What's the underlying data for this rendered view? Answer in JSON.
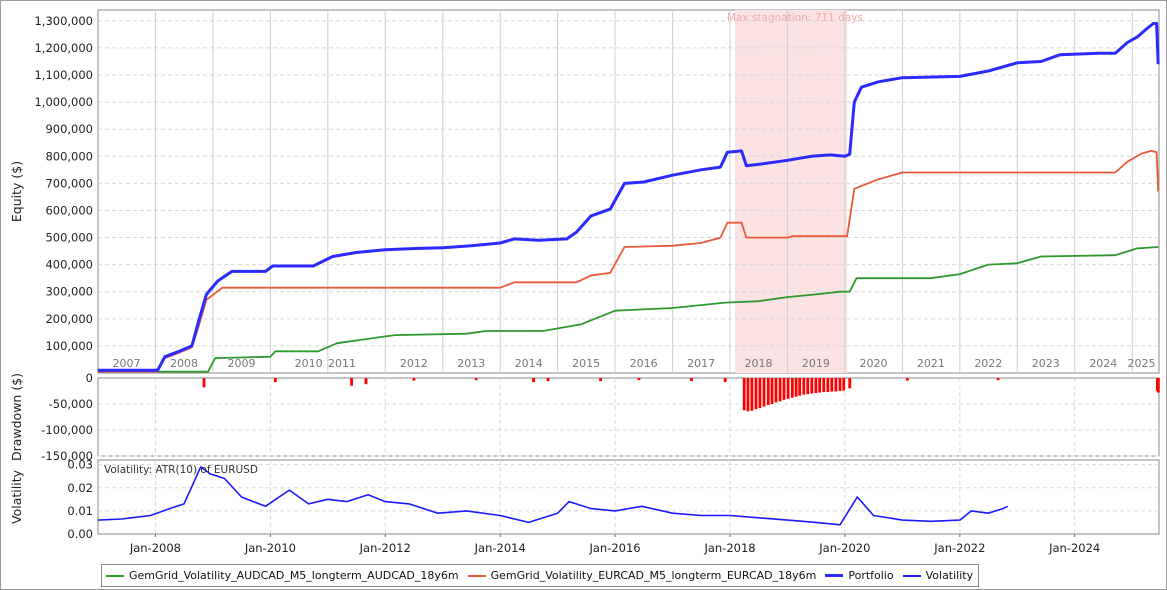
{
  "chart_data": [
    {
      "type": "line",
      "ylabel": "Equity ($)",
      "ylim": [
        0,
        1340000
      ],
      "xlim": [
        "2007-01-01",
        "2025-06-20"
      ],
      "yticks": [
        100000,
        200000,
        300000,
        400000,
        500000,
        600000,
        700000,
        800000,
        900000,
        1000000,
        1100000,
        1200000,
        1300000
      ],
      "ytick_labels": [
        "100,000",
        "200,000",
        "300,000",
        "400,000",
        "500,000",
        "600,000",
        "700,000",
        "800,000",
        "900,000",
        "1,000,000",
        "1,100,000",
        "1,200,000",
        "1,300,000"
      ],
      "year_labels": [
        {
          "label": "2007",
          "x": "2007-07-01"
        },
        {
          "label": "2008",
          "x": "2008-07-01"
        },
        {
          "label": "2009",
          "x": "2009-07-01"
        },
        {
          "label": "2010",
          "x": "2010-09-01"
        },
        {
          "label": "2011",
          "x": "2011-04-01"
        },
        {
          "label": "2012",
          "x": "2012-07-01"
        },
        {
          "label": "2013",
          "x": "2013-07-01"
        },
        {
          "label": "2014",
          "x": "2014-07-01"
        },
        {
          "label": "2015",
          "x": "2015-07-01"
        },
        {
          "label": "2016",
          "x": "2016-07-01"
        },
        {
          "label": "2017",
          "x": "2017-07-01"
        },
        {
          "label": "2018",
          "x": "2018-07-01"
        },
        {
          "label": "2019",
          "x": "2019-07-01"
        },
        {
          "label": "2020",
          "x": "2020-07-01"
        },
        {
          "label": "2021",
          "x": "2021-07-01"
        },
        {
          "label": "2022",
          "x": "2022-07-01"
        },
        {
          "label": "2023",
          "x": "2023-07-01"
        },
        {
          "label": "2024",
          "x": "2024-07-01"
        },
        {
          "label": "2025",
          "x": "2025-03-01"
        }
      ],
      "stagnation": {
        "from": "2018-02-01",
        "to": "2020-01-15",
        "label": "Max stagnation: 711 days"
      },
      "series": [
        {
          "name": "Portfolio",
          "color": "#2b2bff",
          "points": [
            [
              "2007-01-01",
              10000
            ],
            [
              "2008-01-15",
              10000
            ],
            [
              "2008-03-01",
              60000
            ],
            [
              "2008-06-01",
              80000
            ],
            [
              "2008-08-20",
              100000
            ],
            [
              "2008-10-01",
              190000
            ],
            [
              "2008-11-20",
              290000
            ],
            [
              "2009-02-01",
              340000
            ],
            [
              "2009-05-01",
              375000
            ],
            [
              "2009-12-01",
              375000
            ],
            [
              "2010-01-15",
              395000
            ],
            [
              "2010-10-01",
              395000
            ],
            [
              "2011-02-01",
              430000
            ],
            [
              "2011-07-01",
              445000
            ],
            [
              "2012-01-01",
              455000
            ],
            [
              "2012-08-01",
              460000
            ],
            [
              "2013-01-01",
              462000
            ],
            [
              "2013-07-01",
              470000
            ],
            [
              "2014-01-01",
              480000
            ],
            [
              "2014-04-01",
              495000
            ],
            [
              "2014-09-01",
              490000
            ],
            [
              "2015-03-01",
              495000
            ],
            [
              "2015-05-01",
              520000
            ],
            [
              "2015-08-01",
              580000
            ],
            [
              "2015-12-01",
              605000
            ],
            [
              "2016-03-01",
              700000
            ],
            [
              "2016-07-01",
              705000
            ],
            [
              "2017-01-01",
              730000
            ],
            [
              "2017-07-01",
              750000
            ],
            [
              "2017-11-01",
              760000
            ],
            [
              "2017-12-15",
              815000
            ],
            [
              "2018-03-15",
              820000
            ],
            [
              "2018-04-15",
              765000
            ],
            [
              "2018-07-01",
              770000
            ],
            [
              "2019-01-01",
              785000
            ],
            [
              "2019-06-01",
              800000
            ],
            [
              "2019-10-01",
              805000
            ],
            [
              "2020-01-01",
              800000
            ],
            [
              "2020-02-01",
              808000
            ],
            [
              "2020-03-01",
              1000000
            ],
            [
              "2020-04-15",
              1055000
            ],
            [
              "2020-08-01",
              1075000
            ],
            [
              "2021-01-01",
              1090000
            ],
            [
              "2022-01-01",
              1095000
            ],
            [
              "2022-07-01",
              1115000
            ],
            [
              "2023-01-01",
              1145000
            ],
            [
              "2023-06-01",
              1150000
            ],
            [
              "2023-10-01",
              1175000
            ],
            [
              "2024-06-01",
              1180000
            ],
            [
              "2024-09-15",
              1180000
            ],
            [
              "2024-12-01",
              1220000
            ],
            [
              "2025-02-01",
              1240000
            ],
            [
              "2025-04-01",
              1270000
            ],
            [
              "2025-05-15",
              1290000
            ],
            [
              "2025-06-05",
              1290000
            ],
            [
              "2025-06-15",
              1140000
            ]
          ]
        },
        {
          "name": "GemGrid_Volatility_EURCAD_M5_longterm_EURCAD_18y6m",
          "color": "#e85a3a",
          "points": [
            [
              "2007-01-01",
              5000
            ],
            [
              "2008-01-15",
              5000
            ],
            [
              "2008-03-01",
              55000
            ],
            [
              "2008-06-01",
              75000
            ],
            [
              "2008-08-20",
              95000
            ],
            [
              "2008-10-01",
              170000
            ],
            [
              "2008-11-20",
              270000
            ],
            [
              "2009-03-01",
              315000
            ],
            [
              "2014-01-01",
              315000
            ],
            [
              "2014-04-01",
              335000
            ],
            [
              "2015-05-01",
              335000
            ],
            [
              "2015-08-01",
              360000
            ],
            [
              "2015-12-01",
              370000
            ],
            [
              "2016-03-01",
              465000
            ],
            [
              "2017-01-01",
              470000
            ],
            [
              "2017-07-01",
              480000
            ],
            [
              "2017-11-01",
              500000
            ],
            [
              "2017-12-15",
              555000
            ],
            [
              "2018-03-15",
              555000
            ],
            [
              "2018-04-15",
              500000
            ],
            [
              "2019-01-01",
              500000
            ],
            [
              "2019-02-01",
              505000
            ],
            [
              "2020-01-15",
              505000
            ],
            [
              "2020-03-01",
              680000
            ],
            [
              "2020-08-01",
              715000
            ],
            [
              "2021-01-01",
              740000
            ],
            [
              "2022-01-01",
              740000
            ],
            [
              "2024-09-15",
              740000
            ],
            [
              "2024-12-01",
              780000
            ],
            [
              "2025-03-01",
              810000
            ],
            [
              "2025-05-01",
              820000
            ],
            [
              "2025-06-05",
              815000
            ],
            [
              "2025-06-15",
              670000
            ]
          ]
        },
        {
          "name": "GemGrid_Volatility_AUDCAD_M5_longterm_AUDCAD_18y6m",
          "color": "#2e9a2e",
          "points": [
            [
              "2007-01-01",
              5000
            ],
            [
              "2008-12-01",
              5000
            ],
            [
              "2009-01-15",
              55000
            ],
            [
              "2010-01-01",
              60000
            ],
            [
              "2010-02-01",
              80000
            ],
            [
              "2010-11-01",
              80000
            ],
            [
              "2011-03-01",
              110000
            ],
            [
              "2011-09-01",
              125000
            ],
            [
              "2012-03-01",
              140000
            ],
            [
              "2013-06-01",
              145000
            ],
            [
              "2013-10-01",
              155000
            ],
            [
              "2014-10-01",
              155000
            ],
            [
              "2015-06-01",
              180000
            ],
            [
              "2016-01-01",
              230000
            ],
            [
              "2017-01-01",
              240000
            ],
            [
              "2017-12-01",
              260000
            ],
            [
              "2018-07-01",
              265000
            ],
            [
              "2019-01-01",
              280000
            ],
            [
              "2019-07-01",
              290000
            ],
            [
              "2019-12-01",
              300000
            ],
            [
              "2020-02-01",
              300000
            ],
            [
              "2020-03-15",
              350000
            ],
            [
              "2021-07-01",
              350000
            ],
            [
              "2022-01-01",
              365000
            ],
            [
              "2022-07-01",
              400000
            ],
            [
              "2023-01-01",
              405000
            ],
            [
              "2023-06-01",
              430000
            ],
            [
              "2024-09-15",
              435000
            ],
            [
              "2025-02-01",
              460000
            ],
            [
              "2025-06-15",
              465000
            ]
          ]
        }
      ]
    },
    {
      "type": "bar",
      "ylabel": "Drawdown ($)",
      "ylim": [
        -150000,
        0
      ],
      "yticks": [
        0,
        -50000,
        -100000,
        -150000
      ],
      "ytick_labels": [
        "0",
        "-50,000",
        "-100,000",
        "-150,000"
      ],
      "color": "#ff0000",
      "bars": [
        [
          "2008-11-05",
          -18000
        ],
        [
          "2010-02-01",
          -8000
        ],
        [
          "2011-06-01",
          -15000
        ],
        [
          "2011-09-01",
          -12000
        ],
        [
          "2012-07-01",
          -5000
        ],
        [
          "2013-08-01",
          -4000
        ],
        [
          "2014-08-01",
          -8000
        ],
        [
          "2014-11-01",
          -6000
        ],
        [
          "2015-10-01",
          -6000
        ],
        [
          "2016-06-01",
          -4000
        ],
        [
          "2017-05-01",
          -6000
        ],
        [
          "2017-12-01",
          -8000
        ],
        [
          "2018-04-01",
          -62000
        ],
        [
          "2018-04-25",
          -64000
        ],
        [
          "2018-05-20",
          -63000
        ],
        [
          "2018-06-15",
          -60000
        ],
        [
          "2018-07-10",
          -58000
        ],
        [
          "2018-08-05",
          -55000
        ],
        [
          "2018-09-01",
          -52000
        ],
        [
          "2018-09-25",
          -50000
        ],
        [
          "2018-10-20",
          -47000
        ],
        [
          "2018-11-15",
          -45000
        ],
        [
          "2018-12-10",
          -42000
        ],
        [
          "2019-01-05",
          -40000
        ],
        [
          "2019-02-01",
          -38000
        ],
        [
          "2019-02-25",
          -36000
        ],
        [
          "2019-03-20",
          -34000
        ],
        [
          "2019-04-15",
          -32000
        ],
        [
          "2019-05-10",
          -31000
        ],
        [
          "2019-06-05",
          -30000
        ],
        [
          "2019-07-01",
          -29000
        ],
        [
          "2019-07-25",
          -28000
        ],
        [
          "2019-08-20",
          -27000
        ],
        [
          "2019-09-15",
          -27000
        ],
        [
          "2019-10-10",
          -26000
        ],
        [
          "2019-11-05",
          -26000
        ],
        [
          "2019-12-01",
          -25000
        ],
        [
          "2019-12-25",
          -24000
        ],
        [
          "2020-02-01",
          -20000
        ],
        [
          "2021-02-01",
          -5000
        ],
        [
          "2022-09-01",
          -4000
        ],
        [
          "2025-06-10",
          -25000
        ],
        [
          "2025-06-16",
          -28000
        ]
      ]
    },
    {
      "type": "line",
      "ylabel": "Volatility",
      "title": "Volatility: ATR(10) of EURUSD",
      "ylim": [
        0,
        0.032
      ],
      "yticks": [
        0,
        0.01,
        0.02,
        0.03
      ],
      "ytick_labels": [
        "0.00",
        "0.01",
        "0.02",
        "0.03"
      ],
      "xticks": [
        "2008-01-01",
        "2010-01-01",
        "2012-01-01",
        "2014-01-01",
        "2016-01-01",
        "2018-01-01",
        "2020-01-01",
        "2022-01-01",
        "2024-01-01"
      ],
      "xtick_labels": [
        "Jan-2008",
        "Jan-2010",
        "Jan-2012",
        "Jan-2014",
        "Jan-2016",
        "Jan-2018",
        "Jan-2020",
        "Jan-2022",
        "Jan-2024"
      ],
      "series": [
        {
          "name": "Volatility",
          "color": "#1a1aff",
          "points": [
            [
              "2007-01-01",
              0.006
            ],
            [
              "2007-06-01",
              0.0065
            ],
            [
              "2007-12-01",
              0.008
            ],
            [
              "2008-04-01",
              0.011
            ],
            [
              "2008-07-01",
              0.013
            ],
            [
              "2008-10-15",
              0.029
            ],
            [
              "2008-12-15",
              0.026
            ],
            [
              "2009-03-15",
              0.024
            ],
            [
              "2009-07-01",
              0.016
            ],
            [
              "2009-12-01",
              0.012
            ],
            [
              "2010-05-01",
              0.019
            ],
            [
              "2010-09-01",
              0.013
            ],
            [
              "2011-01-01",
              0.015
            ],
            [
              "2011-05-01",
              0.014
            ],
            [
              "2011-09-15",
              0.017
            ],
            [
              "2012-01-01",
              0.014
            ],
            [
              "2012-06-01",
              0.013
            ],
            [
              "2012-12-01",
              0.009
            ],
            [
              "2013-06-01",
              0.01
            ],
            [
              "2014-01-01",
              0.008
            ],
            [
              "2014-07-01",
              0.005
            ],
            [
              "2015-01-01",
              0.009
            ],
            [
              "2015-03-15",
              0.014
            ],
            [
              "2015-08-01",
              0.011
            ],
            [
              "2016-01-01",
              0.01
            ],
            [
              "2016-06-20",
              0.012
            ],
            [
              "2017-01-01",
              0.009
            ],
            [
              "2017-07-01",
              0.008
            ],
            [
              "2018-01-01",
              0.008
            ],
            [
              "2018-07-01",
              0.007
            ],
            [
              "2019-01-01",
              0.006
            ],
            [
              "2019-07-01",
              0.005
            ],
            [
              "2019-12-01",
              0.004
            ],
            [
              "2020-03-20",
              0.016
            ],
            [
              "2020-07-01",
              0.008
            ],
            [
              "2021-01-01",
              0.006
            ],
            [
              "2021-07-01",
              0.0055
            ],
            [
              "2022-01-01",
              0.006
            ],
            [
              "2022-03-15",
              0.01
            ],
            [
              "2022-07-01",
              0.009
            ],
            [
              "2022-10-01",
              0.011
            ],
            [
              "2022-11-01",
              0.012
            ]
          ]
        }
      ]
    }
  ],
  "legend": [
    {
      "label": "GemGrid_Volatility_AUDCAD_M5_longterm_AUDCAD_18y6m",
      "color": "#2e9a2e",
      "thick": false
    },
    {
      "label": "GemGrid_Volatility_EURCAD_M5_longterm_EURCAD_18y6m",
      "color": "#e85a3a",
      "thick": false
    },
    {
      "label": "Portfolio",
      "color": "#2b2bff",
      "thick": true
    },
    {
      "label": "Volatility",
      "color": "#1a1aff",
      "thick": false
    }
  ]
}
